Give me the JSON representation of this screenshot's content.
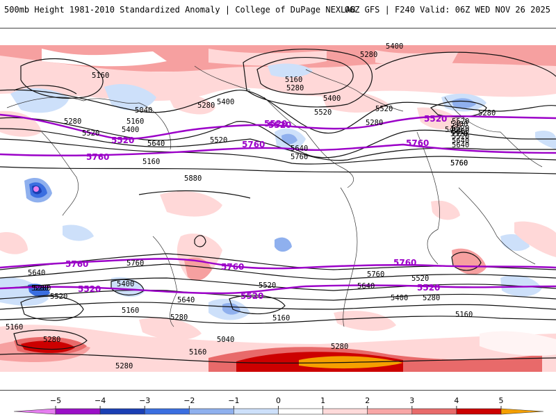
{
  "header": {
    "left": "500mb Height 1981-2010 Standardized Anomaly | College of DuPage NEXLAB",
    "right": "06Z GFS | F240 Valid: 06Z WED NOV 26 2025"
  },
  "map": {
    "contour_labels": [
      "5400",
      "5280",
      "5160",
      "5160",
      "5280",
      "5400",
      "5280",
      "5400",
      "5520",
      "5280",
      "5520",
      "5400",
      "5520",
      "5640",
      "5280",
      "5520",
      "5160",
      "5400",
      "5520",
      "5040",
      "5640",
      "5760",
      "5880",
      "5520",
      "5280",
      "5400",
      "5520",
      "5640",
      "5640",
      "5760",
      "5760",
      "5280",
      "5400",
      "5160",
      "5160",
      "5520",
      "5640",
      "5400",
      "5520",
      "5280",
      "5160",
      "5160",
      "5280",
      "5280",
      "5040",
      "5160",
      "5280",
      "5280",
      "5520",
      "5640",
      "5760",
      "5280",
      "5160",
      "5400",
      "5520",
      "5640",
      "5760"
    ],
    "highlight_labels": [
      "5520",
      "5760",
      "5520",
      "5760",
      "5520",
      "5760",
      "5520",
      "5760",
      "5760",
      "5520",
      "5760",
      "5520",
      "5520"
    ],
    "colors": {
      "contour": "#111111",
      "highlight": "#9b00c8",
      "coast": "#333333"
    }
  },
  "colorbar": {
    "ticks": [
      "−5",
      "−4",
      "−3",
      "−2",
      "−1",
      "0",
      "1",
      "2",
      "3",
      "4",
      "5"
    ],
    "colors": [
      "#e67ef0",
      "#9a0fc7",
      "#1a3fb4",
      "#3a6ee0",
      "#8fb0ee",
      "#cde0fa",
      "#ffffff",
      "#ffdada",
      "#f8a6a6",
      "#e86a6a",
      "#cc0000",
      "#f5a000"
    ]
  }
}
